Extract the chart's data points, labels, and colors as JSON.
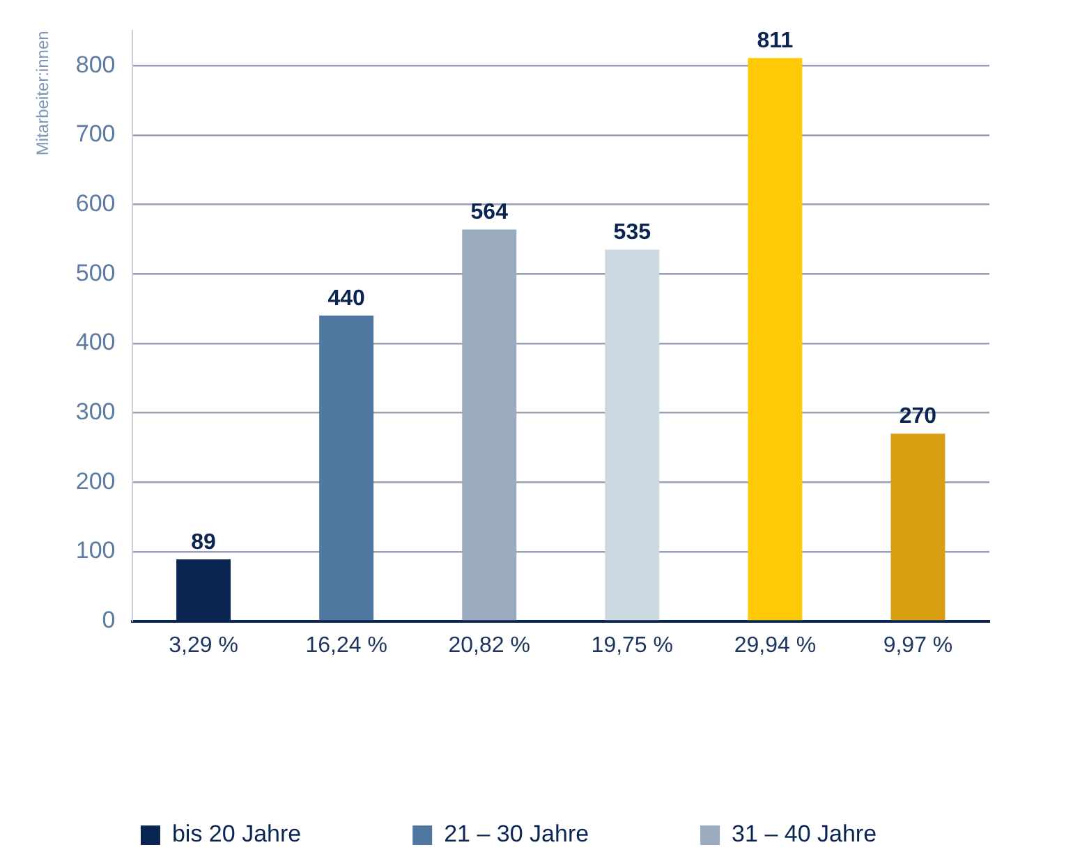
{
  "chart_data": {
    "type": "bar",
    "ylabel": "Mitarbeiter:innen",
    "categories": [
      "3,29 %",
      "16,24 %",
      "20,82 %",
      "19,75 %",
      "29,94 %",
      "9,97 %"
    ],
    "series": [
      {
        "name": "bis 20 Jahre",
        "color": "#0b2552",
        "values": [
          89,
          null,
          null,
          null,
          null,
          null
        ]
      },
      {
        "name": "21 – 30 Jahre",
        "color": "#50779f",
        "values": [
          null,
          440,
          null,
          null,
          null,
          null
        ]
      },
      {
        "name": "31 – 40 Jahre",
        "color": "#9aabc0",
        "values": [
          null,
          null,
          564,
          null,
          null,
          null
        ]
      },
      {
        "color": "#cdd9e1",
        "values": [
          null,
          null,
          null,
          535,
          null,
          null
        ]
      },
      {
        "color": "#ffca05",
        "values": [
          null,
          null,
          null,
          null,
          811,
          null
        ]
      },
      {
        "color": "#d99e12",
        "values": [
          null,
          null,
          null,
          null,
          null,
          270
        ]
      }
    ],
    "ylim": [
      0,
      850
    ],
    "yticks": [
      0,
      100,
      200,
      300,
      400,
      500,
      600,
      700,
      800
    ],
    "grid": "y",
    "legend": "bottom",
    "data_labels": true
  }
}
